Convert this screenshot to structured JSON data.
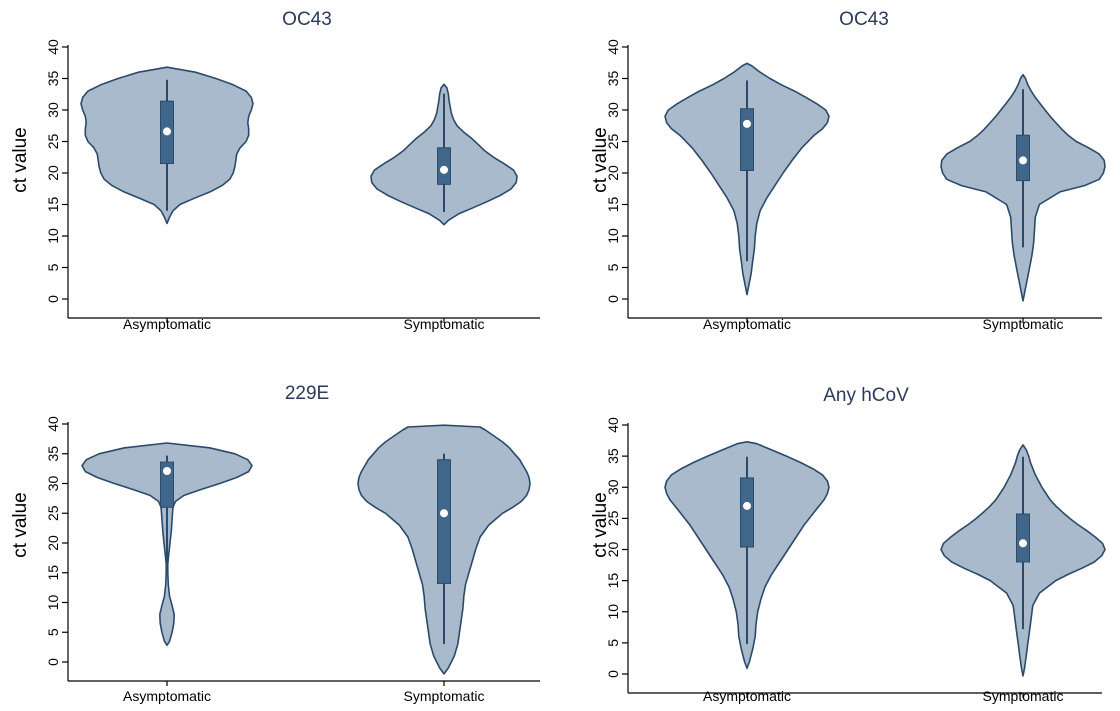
{
  "chart_data": [
    {
      "type": "violin",
      "title": "OC43",
      "ylabel": "ct value",
      "ylim": [
        0,
        40
      ],
      "yticks": [
        0,
        5,
        10,
        15,
        20,
        25,
        30,
        35,
        40
      ],
      "categories": [
        "Asymptomatic",
        "Symptomatic"
      ],
      "groups": [
        {
          "name": "Asymptomatic",
          "median": 26.6,
          "q1": 21.5,
          "q3": 31.4,
          "whisker_low": 14.0,
          "whisker_high": 34.8,
          "density": [
            [
              12.0,
              0
            ],
            [
              13.0,
              0.03
            ],
            [
              14.0,
              0.07
            ],
            [
              15.0,
              0.15
            ],
            [
              16.0,
              0.32
            ],
            [
              17.0,
              0.5
            ],
            [
              18.0,
              0.64
            ],
            [
              19.0,
              0.73
            ],
            [
              20.0,
              0.77
            ],
            [
              21.0,
              0.79
            ],
            [
              22.0,
              0.8
            ],
            [
              23.0,
              0.81
            ],
            [
              24.0,
              0.85
            ],
            [
              25.0,
              0.92
            ],
            [
              26.0,
              0.95
            ],
            [
              27.0,
              0.95
            ],
            [
              28.0,
              0.94
            ],
            [
              29.0,
              0.95
            ],
            [
              30.0,
              0.98
            ],
            [
              31.0,
              1.0
            ],
            [
              32.0,
              0.98
            ],
            [
              33.0,
              0.92
            ],
            [
              34.0,
              0.77
            ],
            [
              35.0,
              0.57
            ],
            [
              36.0,
              0.33
            ],
            [
              36.8,
              0
            ]
          ]
        },
        {
          "name": "Symptomatic",
          "median": 20.5,
          "q1": 18.2,
          "q3": 24.0,
          "whisker_low": 13.8,
          "whisker_high": 32.6,
          "density": [
            [
              11.8,
              0
            ],
            [
              12.5,
              0.06
            ],
            [
              13.5,
              0.2
            ],
            [
              14.5,
              0.4
            ],
            [
              15.5,
              0.6
            ],
            [
              16.5,
              0.78
            ],
            [
              17.5,
              0.92
            ],
            [
              18.5,
              0.99
            ],
            [
              19.5,
              1.0
            ],
            [
              20.5,
              0.95
            ],
            [
              21.5,
              0.82
            ],
            [
              22.5,
              0.68
            ],
            [
              23.5,
              0.56
            ],
            [
              24.5,
              0.47
            ],
            [
              25.5,
              0.38
            ],
            [
              26.5,
              0.27
            ],
            [
              27.5,
              0.18
            ],
            [
              28.5,
              0.13
            ],
            [
              29.5,
              0.1
            ],
            [
              30.5,
              0.085
            ],
            [
              31.5,
              0.07
            ],
            [
              32.5,
              0.06
            ],
            [
              33.5,
              0.04
            ],
            [
              34.1,
              0
            ]
          ]
        }
      ]
    },
    {
      "type": "violin",
      "title": "OC43",
      "ylabel": "ct value",
      "ylim": [
        0,
        40
      ],
      "yticks": [
        0,
        5,
        10,
        15,
        20,
        25,
        30,
        35,
        40
      ],
      "categories": [
        "Asymptomatic",
        "Symptomatic"
      ],
      "groups": [
        {
          "name": "Asymptomatic",
          "median": 27.8,
          "q1": 20.4,
          "q3": 30.2,
          "whisker_low": 6.0,
          "whisker_high": 34.7,
          "density": [
            [
              0.7,
              0
            ],
            [
              2,
              0.02
            ],
            [
              4,
              0.05
            ],
            [
              6,
              0.07
            ],
            [
              8,
              0.09
            ],
            [
              10,
              0.1
            ],
            [
              12,
              0.12
            ],
            [
              14,
              0.16
            ],
            [
              16,
              0.24
            ],
            [
              18,
              0.34
            ],
            [
              20,
              0.44
            ],
            [
              22,
              0.55
            ],
            [
              24,
              0.67
            ],
            [
              26,
              0.82
            ],
            [
              27,
              0.92
            ],
            [
              28,
              0.98
            ],
            [
              29,
              1.0
            ],
            [
              30,
              0.96
            ],
            [
              31,
              0.85
            ],
            [
              32,
              0.72
            ],
            [
              33,
              0.58
            ],
            [
              34,
              0.42
            ],
            [
              35,
              0.28
            ],
            [
              36,
              0.16
            ],
            [
              37,
              0.06
            ],
            [
              37.4,
              0
            ]
          ]
        },
        {
          "name": "Symptomatic",
          "median": 22.0,
          "q1": 18.8,
          "q3": 26.0,
          "whisker_low": 8.2,
          "whisker_high": 33.3,
          "density": [
            [
              -0.3,
              0
            ],
            [
              1,
              0.02
            ],
            [
              3,
              0.05
            ],
            [
              5,
              0.08
            ],
            [
              7,
              0.11
            ],
            [
              9,
              0.13
            ],
            [
              11,
              0.14
            ],
            [
              13,
              0.15
            ],
            [
              15,
              0.2
            ],
            [
              17,
              0.45
            ],
            [
              18,
              0.75
            ],
            [
              19,
              0.93
            ],
            [
              20,
              0.98
            ],
            [
              21,
              1.0
            ],
            [
              22,
              0.99
            ],
            [
              23,
              0.93
            ],
            [
              24,
              0.8
            ],
            [
              25,
              0.65
            ],
            [
              26,
              0.55
            ],
            [
              27,
              0.47
            ],
            [
              28,
              0.4
            ],
            [
              29,
              0.33
            ],
            [
              30,
              0.27
            ],
            [
              31,
              0.21
            ],
            [
              32,
              0.15
            ],
            [
              33,
              0.1
            ],
            [
              34,
              0.06
            ],
            [
              35,
              0.03
            ],
            [
              35.6,
              0
            ]
          ]
        }
      ]
    },
    {
      "type": "violin",
      "title": "229E",
      "ylabel": "ct value",
      "ylim": [
        0,
        40
      ],
      "yticks": [
        0,
        5,
        10,
        15,
        20,
        25,
        30,
        35,
        40
      ],
      "categories": [
        "Asymptomatic",
        "Symptomatic"
      ],
      "groups": [
        {
          "name": "Asymptomatic",
          "median": 32.1,
          "q1": 26.0,
          "q3": 33.6,
          "whisker_low": 16.5,
          "whisker_high": 34.7,
          "density": [
            [
              2.8,
              0
            ],
            [
              3.5,
              0.03
            ],
            [
              5,
              0.06
            ],
            [
              6.5,
              0.08
            ],
            [
              8,
              0.085
            ],
            [
              9.5,
              0.06
            ],
            [
              11,
              0.03
            ],
            [
              13,
              0.015
            ],
            [
              15,
              0.01
            ],
            [
              16.5,
              0.01
            ],
            [
              18,
              0.02
            ],
            [
              20,
              0.035
            ],
            [
              22,
              0.05
            ],
            [
              24,
              0.06
            ],
            [
              26,
              0.07
            ],
            [
              27,
              0.1
            ],
            [
              28,
              0.2
            ],
            [
              29,
              0.4
            ],
            [
              30,
              0.62
            ],
            [
              31,
              0.82
            ],
            [
              32,
              0.96
            ],
            [
              33,
              1.0
            ],
            [
              34,
              0.95
            ],
            [
              35,
              0.8
            ],
            [
              36,
              0.5
            ],
            [
              36.8,
              0
            ]
          ]
        },
        {
          "name": "Symptomatic",
          "median": 25.0,
          "q1": 13.2,
          "q3": 34.0,
          "whisker_low": 3.0,
          "whisker_high": 35.0,
          "density": [
            [
              -2,
              0
            ],
            [
              -1,
              0.05
            ],
            [
              1,
              0.12
            ],
            [
              3,
              0.16
            ],
            [
              5,
              0.18
            ],
            [
              7,
              0.2
            ],
            [
              9,
              0.22
            ],
            [
              11,
              0.23
            ],
            [
              13,
              0.25
            ],
            [
              15,
              0.29
            ],
            [
              17,
              0.33
            ],
            [
              19,
              0.37
            ],
            [
              21,
              0.42
            ],
            [
              23,
              0.52
            ],
            [
              25,
              0.68
            ],
            [
              26,
              0.8
            ],
            [
              27,
              0.9
            ],
            [
              28,
              0.96
            ],
            [
              29,
              0.99
            ],
            [
              30,
              1.0
            ],
            [
              31,
              0.99
            ],
            [
              32,
              0.96
            ],
            [
              33,
              0.92
            ],
            [
              34,
              0.88
            ],
            [
              35,
              0.82
            ],
            [
              36,
              0.76
            ],
            [
              37,
              0.68
            ],
            [
              38,
              0.58
            ],
            [
              39,
              0.48
            ],
            [
              39.5,
              0.42
            ],
            [
              39.8,
              0
            ]
          ]
        }
      ]
    },
    {
      "type": "violin",
      "title": "Any hCoV",
      "ylabel": "ct value",
      "ylim": [
        0,
        40
      ],
      "yticks": [
        0,
        5,
        10,
        15,
        20,
        25,
        30,
        35,
        40
      ],
      "categories": [
        "Asymptomatic",
        "Symptomatic"
      ],
      "groups": [
        {
          "name": "Asymptomatic",
          "median": 27.0,
          "q1": 20.4,
          "q3": 31.5,
          "whisker_low": 4.8,
          "whisker_high": 34.9,
          "density": [
            [
              0.9,
              0
            ],
            [
              2,
              0.03
            ],
            [
              4,
              0.07
            ],
            [
              6,
              0.1
            ],
            [
              8,
              0.11
            ],
            [
              10,
              0.13
            ],
            [
              12,
              0.17
            ],
            [
              14,
              0.22
            ],
            [
              16,
              0.3
            ],
            [
              18,
              0.4
            ],
            [
              20,
              0.5
            ],
            [
              22,
              0.6
            ],
            [
              24,
              0.7
            ],
            [
              26,
              0.82
            ],
            [
              28,
              0.94
            ],
            [
              29,
              0.98
            ],
            [
              30,
              1.0
            ],
            [
              31,
              0.98
            ],
            [
              32,
              0.92
            ],
            [
              33,
              0.8
            ],
            [
              34,
              0.65
            ],
            [
              35,
              0.48
            ],
            [
              36,
              0.3
            ],
            [
              37,
              0.12
            ],
            [
              37.3,
              0
            ]
          ]
        },
        {
          "name": "Symptomatic",
          "median": 21.0,
          "q1": 18.0,
          "q3": 25.7,
          "whisker_low": 7.2,
          "whisker_high": 34.9,
          "density": [
            [
              -0.3,
              0
            ],
            [
              1,
              0.02
            ],
            [
              3,
              0.04
            ],
            [
              5,
              0.06
            ],
            [
              7,
              0.08
            ],
            [
              9,
              0.1
            ],
            [
              11,
              0.12
            ],
            [
              13,
              0.2
            ],
            [
              15,
              0.4
            ],
            [
              16,
              0.55
            ],
            [
              17,
              0.72
            ],
            [
              18,
              0.87
            ],
            [
              19,
              0.96
            ],
            [
              20,
              1.0
            ],
            [
              21,
              0.97
            ],
            [
              22,
              0.88
            ],
            [
              23,
              0.78
            ],
            [
              24,
              0.67
            ],
            [
              25,
              0.57
            ],
            [
              26,
              0.48
            ],
            [
              27,
              0.4
            ],
            [
              28,
              0.33
            ],
            [
              29,
              0.28
            ],
            [
              30,
              0.23
            ],
            [
              31,
              0.19
            ],
            [
              32,
              0.15
            ],
            [
              33,
              0.12
            ],
            [
              34,
              0.09
            ],
            [
              35,
              0.07
            ],
            [
              36,
              0.04
            ],
            [
              36.8,
              0
            ]
          ]
        }
      ]
    }
  ],
  "colors": {
    "violin_fill": "#a8bacb",
    "violin_stroke": "#2b4a6b",
    "box_fill": "#40678a",
    "median_fill": "#ffffff",
    "title": "#2b3a5c",
    "axis": "#000000"
  }
}
